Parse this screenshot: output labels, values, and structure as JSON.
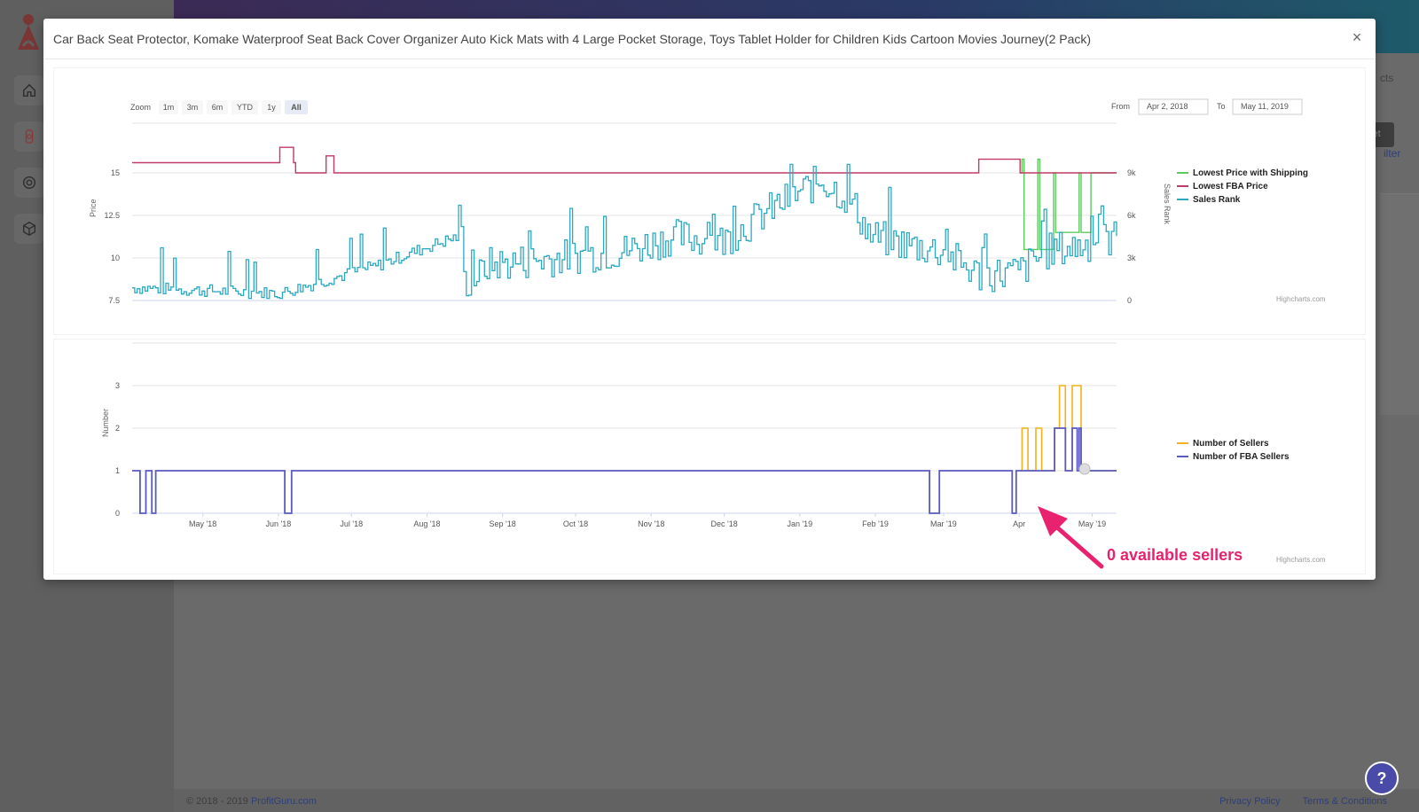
{
  "background": {
    "footer_copy": "© 2018 - 2019",
    "footer_brand": "ProfitGuru.com",
    "footer_links": [
      "Privacy Policy",
      "Terms & Conditions"
    ],
    "right_fragments": [
      "cts",
      "set",
      "ilter"
    ]
  },
  "modal": {
    "title": "Car Back Seat Protector, Komake Waterproof Seat Back Cover Organizer Auto Kick Mats with 4 Large Pocket Storage, Toys Tablet Holder for Children Kids Cartoon Movies Journey(2 Pack)",
    "close_label": "×"
  },
  "toolbar": {
    "zoom_label": "Zoom",
    "zoom_options": [
      "1m",
      "3m",
      "6m",
      "YTD",
      "1y",
      "All"
    ],
    "zoom_selected": "All",
    "from_label": "From",
    "from_value": "Apr 2, 2018",
    "to_label": "To",
    "to_value": "May 11, 2019"
  },
  "chart_data": [
    {
      "type": "line",
      "y_left_label": "Price",
      "y_left_ticks": [
        7.5,
        10,
        12.5,
        15
      ],
      "y_left_range": [
        7.5,
        17.5
      ],
      "y_right_label": "Sales Rank",
      "y_right_ticks": [
        "0",
        "3k",
        "6k",
        "9k"
      ],
      "y_right_range": [
        0,
        12000
      ],
      "x_range": [
        "2018-04-02",
        "2019-05-11"
      ],
      "series": [
        {
          "name": "Lowest Price with Shipping",
          "color": "#5cc95c",
          "axis": "left"
        },
        {
          "name": "Lowest FBA Price",
          "color": "#c23a66",
          "axis": "left"
        },
        {
          "name": "Sales Rank",
          "color": "#2aa9c2",
          "axis": "right"
        }
      ],
      "credit": "Highcharts.com"
    },
    {
      "type": "line",
      "y_label": "Number",
      "y_ticks": [
        0,
        1,
        2,
        3
      ],
      "y_range": [
        0,
        4
      ],
      "x_ticks": [
        "May '18",
        "Jun '18",
        "Jul '18",
        "Aug '18",
        "Sep '18",
        "Oct '18",
        "Nov '18",
        "Dec '18",
        "Jan '19",
        "Feb '19",
        "Mar '19",
        "Apr",
        "May '19"
      ],
      "x_range": [
        "2018-04-02",
        "2019-05-11"
      ],
      "series": [
        {
          "name": "Number of Sellers",
          "color": "#f2b21c"
        },
        {
          "name": "Number of FBA Sellers",
          "color": "#5a5ac0"
        }
      ],
      "credit": "Highcharts.com"
    }
  ],
  "annotation": {
    "text": "0 available sellers",
    "color": "#e8226f"
  },
  "help_label": "?"
}
